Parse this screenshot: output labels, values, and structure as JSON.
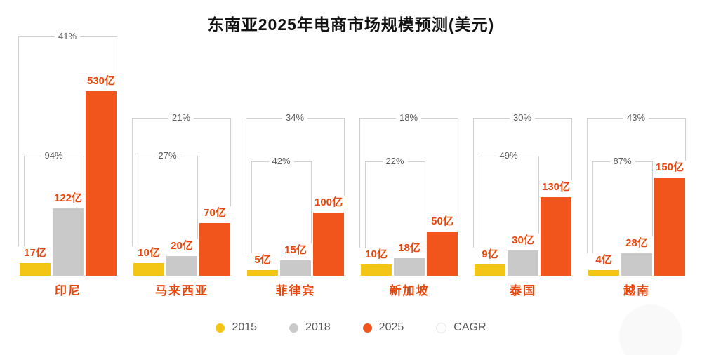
{
  "title": "东南亚2025年电商市场规模预测(美元)",
  "colors": {
    "bar_2015": "#F3C514",
    "bar_2018": "#C9C9C9",
    "bar_2025": "#F1551C",
    "value_text": "#E8470C",
    "country_text": "#E8470C",
    "bracket_line": "#CFCFCF",
    "pct_text": "#5A5A5A"
  },
  "legend": {
    "items": [
      {
        "label": "2015",
        "color": "#F3C514",
        "border": "none"
      },
      {
        "label": "2018",
        "color": "#C9C9C9",
        "border": "none"
      },
      {
        "label": "2025",
        "color": "#F1551C",
        "border": "none"
      },
      {
        "label": "CAGR",
        "color": "#FDFDFD",
        "border": "1px solid #E6E6E6"
      }
    ]
  },
  "chart_data": {
    "type": "bar",
    "title": "东南亚2025年电商市场规模预测(美元)",
    "unit": "亿 (美元)",
    "series": [
      "2015",
      "2018",
      "2025"
    ],
    "legend_position": "bottom",
    "grid": false,
    "annotation_note": "inner bracket = CAGR 2015-2018, outer bracket = CAGR 2015-2025",
    "groups": [
      {
        "id": "indonesia",
        "country": "印尼",
        "values": [
          17,
          122,
          530
        ],
        "value_labels": [
          "17亿",
          "122亿",
          "530亿"
        ],
        "cagr_2015_2018": "94%",
        "cagr_2015_2025": "41%",
        "layout": {
          "heights": [
            18,
            96,
            263
          ],
          "outer_y": 52,
          "inner_y": 222
        }
      },
      {
        "id": "malaysia",
        "country": "马来西亚",
        "values": [
          10,
          20,
          70
        ],
        "value_labels": [
          "10亿",
          "20亿",
          "70亿"
        ],
        "cagr_2015_2018": "27%",
        "cagr_2015_2025": "21%",
        "layout": {
          "heights": [
            18,
            28,
            75
          ],
          "outer_y": 168,
          "inner_y": 222
        }
      },
      {
        "id": "philippines",
        "country": "菲律宾",
        "values": [
          5,
          15,
          100
        ],
        "value_labels": [
          "5亿",
          "15亿",
          "100亿"
        ],
        "cagr_2015_2018": "42%",
        "cagr_2015_2025": "34%",
        "layout": {
          "heights": [
            8,
            22,
            90
          ],
          "outer_y": 168,
          "inner_y": 230
        }
      },
      {
        "id": "singapore",
        "country": "新加坡",
        "values": [
          10,
          18,
          50
        ],
        "value_labels": [
          "10亿",
          "18亿",
          "50亿"
        ],
        "cagr_2015_2018": "22%",
        "cagr_2015_2025": "18%",
        "layout": {
          "heights": [
            16,
            25,
            63
          ],
          "outer_y": 168,
          "inner_y": 230
        }
      },
      {
        "id": "thailand",
        "country": "泰国",
        "values": [
          9,
          30,
          130
        ],
        "value_labels": [
          "9亿",
          "30亿",
          "130亿"
        ],
        "cagr_2015_2018": "49%",
        "cagr_2015_2025": "30%",
        "layout": {
          "heights": [
            16,
            36,
            112
          ],
          "outer_y": 168,
          "inner_y": 222
        }
      },
      {
        "id": "vietnam",
        "country": "越南",
        "values": [
          4,
          28,
          150
        ],
        "value_labels": [
          "4亿",
          "28亿",
          "150亿"
        ],
        "cagr_2015_2018": "87%",
        "cagr_2015_2025": "43%",
        "layout": {
          "heights": [
            8,
            32,
            140
          ],
          "outer_y": 168,
          "inner_y": 230
        }
      }
    ]
  }
}
